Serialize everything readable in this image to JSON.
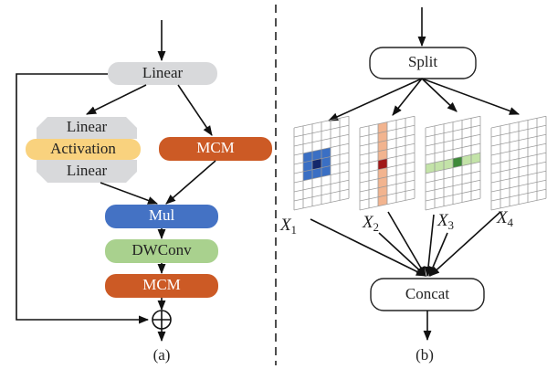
{
  "panel_a": {
    "linear_top": "Linear",
    "gate_linear_1": "Linear",
    "activation": "Activation",
    "gate_linear_2": "Linear",
    "mcm_branch": "MCM",
    "mul": "Mul",
    "dwconv": "DWConv",
    "mcm_out": "MCM",
    "caption": "(a)"
  },
  "panel_b": {
    "split": "Split",
    "outputs": [
      {
        "main": "X",
        "sub": "1"
      },
      {
        "main": "X",
        "sub": "2"
      },
      {
        "main": "X",
        "sub": "3"
      },
      {
        "main": "X",
        "sub": "4"
      }
    ],
    "concat": "Concat",
    "caption": "(b)"
  }
}
